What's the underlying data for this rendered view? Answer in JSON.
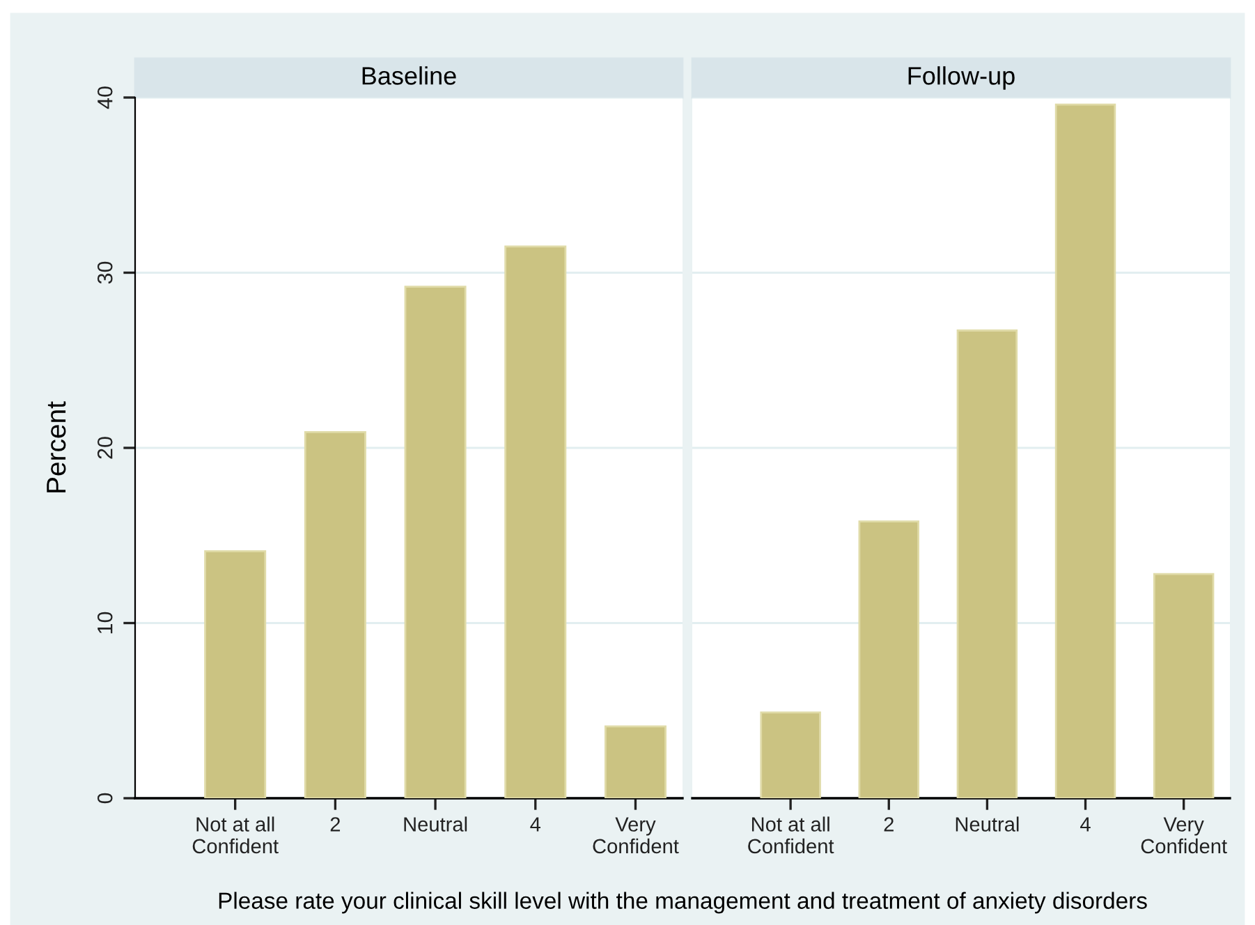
{
  "chart_data": [
    {
      "type": "bar",
      "title": "Baseline",
      "ylabel": "Percent",
      "xlabel": "Please rate your clinical skill level with the management and treatment of anxiety disorders",
      "categories": [
        "Not at all\nConfident",
        "2",
        "Neutral",
        "4",
        "Very\nConfident"
      ],
      "values": [
        14.1,
        20.9,
        29.2,
        31.5,
        4.1
      ],
      "color": "#cbc382",
      "ylim": [
        0,
        40
      ],
      "yticks": [
        0,
        10,
        20,
        30,
        40
      ],
      "grid": "y"
    },
    {
      "type": "bar",
      "title": "Follow-up",
      "categories": [
        "Not at all\nConfident",
        "2",
        "Neutral",
        "4",
        "Very\nConfident"
      ],
      "values": [
        4.9,
        15.8,
        26.7,
        39.6,
        12.8
      ],
      "color": "#cbc382",
      "ylim": [
        0,
        40
      ],
      "yticks": [
        0,
        10,
        20,
        30,
        40
      ],
      "grid": "y",
      "tick_labels": "x"
    }
  ]
}
